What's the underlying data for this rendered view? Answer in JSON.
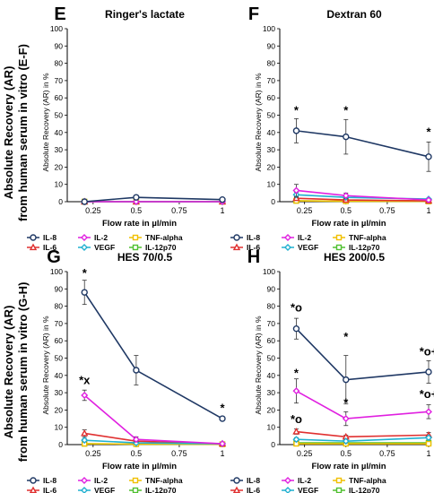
{
  "figure": {
    "ylabel_top_line1": "Absolute Recovery (AR)",
    "ylabel_top_line2": "from human serum in vitro (E-F)",
    "ylabel_bottom_line1": "Absolute Recovery (AR)",
    "ylabel_bottom_line2": "from human serum in vitro (G-H)"
  },
  "chart_data": [
    {
      "panel": "E",
      "type": "line",
      "title": "Ringer's lactate",
      "xlabel": "Flow rate in µl/min",
      "ylabel": "Absolute Recovery (AR) in %",
      "x": [
        0.2,
        0.5,
        1
      ],
      "xticks": [
        "0.25",
        "0.5",
        "0.75",
        "1"
      ],
      "ylim": [
        0,
        100
      ],
      "yticks": [
        "0",
        "10",
        "20",
        "30",
        "40",
        "50",
        "60",
        "70",
        "80",
        "90",
        "100"
      ],
      "series": [
        {
          "name": "IL-8",
          "color": "#1f3864",
          "marker": "circle",
          "values": [
            0,
            2.5,
            1.2
          ],
          "err": [
            0.3,
            0.5,
            0.4
          ]
        },
        {
          "name": "IL-2",
          "color": "#e020e0",
          "marker": "diamond",
          "values": [
            0,
            0,
            0
          ],
          "err": [
            0,
            0,
            0
          ]
        },
        {
          "name": "TNF-alpha",
          "color": "#f0c000",
          "marker": "square",
          "values": [
            0,
            0,
            0
          ],
          "err": [
            0,
            0,
            0
          ]
        },
        {
          "name": "IL-6",
          "color": "#e03030",
          "marker": "triangle",
          "values": [
            0,
            0,
            0
          ],
          "err": [
            0,
            0,
            0
          ]
        },
        {
          "name": "VEGF",
          "color": "#20b0d0",
          "marker": "diamond",
          "values": [
            0,
            0,
            0
          ],
          "err": [
            0,
            0,
            0
          ]
        },
        {
          "name": "IL-12p70",
          "color": "#50c030",
          "marker": "square",
          "values": [
            0,
            0,
            0
          ],
          "err": [
            0,
            0,
            0
          ]
        }
      ],
      "annotations": []
    },
    {
      "panel": "F",
      "type": "line",
      "title": "Dextran 60",
      "xlabel": "Flow rate in µl/min",
      "ylabel": "Absolute Recovery (AR) in %",
      "x": [
        0.2,
        0.5,
        1
      ],
      "xticks": [
        "0.25",
        "0.5",
        "0.75",
        "1"
      ],
      "ylim": [
        0,
        100
      ],
      "yticks": [
        "0",
        "10",
        "20",
        "30",
        "40",
        "50",
        "60",
        "70",
        "80",
        "90",
        "100"
      ],
      "series": [
        {
          "name": "IL-8",
          "color": "#1f3864",
          "marker": "circle",
          "values": [
            41,
            37.5,
            26
          ],
          "err": [
            7,
            10,
            8.5
          ]
        },
        {
          "name": "IL-2",
          "color": "#e020e0",
          "marker": "diamond",
          "values": [
            6.5,
            3.5,
            1
          ],
          "err": [
            3.5,
            1.5,
            0.5
          ]
        },
        {
          "name": "TNF-alpha",
          "color": "#f0c000",
          "marker": "square",
          "values": [
            0.5,
            0.3,
            0.2
          ],
          "err": [
            0,
            0,
            0
          ]
        },
        {
          "name": "IL-6",
          "color": "#e03030",
          "marker": "triangle",
          "values": [
            2,
            1,
            0.5
          ],
          "err": [
            1,
            0.5,
            0.3
          ]
        },
        {
          "name": "VEGF",
          "color": "#20b0d0",
          "marker": "diamond",
          "values": [
            4,
            2.5,
            1.5
          ],
          "err": [
            1.5,
            1,
            0.5
          ]
        },
        {
          "name": "IL-12p70",
          "color": "#50c030",
          "marker": "square",
          "values": [
            0.5,
            0.3,
            0.2
          ],
          "err": [
            0,
            0,
            0
          ]
        }
      ],
      "annotations": [
        {
          "x": 0.2,
          "y": 50.5,
          "text": "*"
        },
        {
          "x": 0.5,
          "y": 50.5,
          "text": "*"
        },
        {
          "x": 1,
          "y": 38,
          "text": "*"
        }
      ]
    },
    {
      "panel": "G",
      "type": "line",
      "title": "HES 70/0.5",
      "xlabel": "Flow rate in µl/min",
      "ylabel": "Absolute Recovery (AR) in %",
      "x": [
        0.2,
        0.5,
        1
      ],
      "xticks": [
        "0.25",
        "0.5",
        "0.75",
        "1"
      ],
      "ylim": [
        0,
        100
      ],
      "yticks": [
        "0",
        "10",
        "20",
        "30",
        "40",
        "50",
        "60",
        "70",
        "80",
        "90",
        "100"
      ],
      "series": [
        {
          "name": "IL-8",
          "color": "#1f3864",
          "marker": "circle",
          "values": [
            88,
            43,
            15
          ],
          "err": [
            7,
            8.5,
            0.5
          ]
        },
        {
          "name": "IL-2",
          "color": "#e020e0",
          "marker": "diamond",
          "values": [
            28.5,
            3,
            0.5
          ],
          "err": [
            3,
            1.5,
            0.3
          ]
        },
        {
          "name": "TNF-alpha",
          "color": "#f0c000",
          "marker": "square",
          "values": [
            0.5,
            0.3,
            0.2
          ],
          "err": [
            0,
            0,
            0
          ]
        },
        {
          "name": "IL-6",
          "color": "#e03030",
          "marker": "triangle",
          "values": [
            6.5,
            2,
            0.5
          ],
          "err": [
            2,
            1,
            0.3
          ]
        },
        {
          "name": "VEGF",
          "color": "#20b0d0",
          "marker": "diamond",
          "values": [
            2.5,
            1,
            0.5
          ],
          "err": [
            1,
            0.5,
            0.2
          ]
        },
        {
          "name": "IL-12p70",
          "color": "#50c030",
          "marker": "square",
          "values": [
            0.5,
            0.3,
            0.2
          ],
          "err": [
            0,
            0,
            0
          ]
        }
      ],
      "annotations": [
        {
          "x": 0.2,
          "y": 97,
          "text": "*"
        },
        {
          "x": 0.2,
          "y": 35,
          "text": "*x"
        },
        {
          "x": 1,
          "y": 19,
          "text": "*"
        }
      ]
    },
    {
      "panel": "H",
      "type": "line",
      "title": "HES 200/0.5",
      "xlabel": "Flow rate in µl/min",
      "ylabel": "Absolute Recovery (AR) in %",
      "x": [
        0.2,
        0.5,
        1
      ],
      "xticks": [
        "0.25",
        "0.5",
        "0.75",
        "1"
      ],
      "ylim": [
        0,
        100
      ],
      "yticks": [
        "0",
        "10",
        "20",
        "30",
        "40",
        "50",
        "60",
        "70",
        "80",
        "90",
        "100"
      ],
      "series": [
        {
          "name": "IL-8",
          "color": "#1f3864",
          "marker": "circle",
          "values": [
            67,
            37.5,
            42
          ],
          "err": [
            6,
            14,
            6.5
          ]
        },
        {
          "name": "IL-2",
          "color": "#e020e0",
          "marker": "diamond",
          "values": [
            31,
            15,
            19
          ],
          "err": [
            7,
            4,
            4
          ]
        },
        {
          "name": "TNF-alpha",
          "color": "#f0c000",
          "marker": "square",
          "values": [
            0.5,
            0.5,
            0.5
          ],
          "err": [
            0,
            0,
            0
          ]
        },
        {
          "name": "IL-6",
          "color": "#e03030",
          "marker": "triangle",
          "values": [
            7.5,
            4.5,
            5.5
          ],
          "err": [
            1.5,
            1,
            1.5
          ]
        },
        {
          "name": "VEGF",
          "color": "#20b0d0",
          "marker": "diamond",
          "values": [
            3,
            2,
            4
          ],
          "err": [
            1,
            1,
            1
          ]
        },
        {
          "name": "IL-12p70",
          "color": "#50c030",
          "marker": "square",
          "values": [
            1,
            1,
            1
          ],
          "err": [
            0,
            0,
            0
          ]
        }
      ],
      "annotations": [
        {
          "x": 0.2,
          "y": 77,
          "text": "*o"
        },
        {
          "x": 0.5,
          "y": 60,
          "text": "*"
        },
        {
          "x": 1,
          "y": 51.5,
          "text": "*o+"
        },
        {
          "x": 0.2,
          "y": 39,
          "text": "*"
        },
        {
          "x": 0.5,
          "y": 22,
          "text": "*"
        },
        {
          "x": 1,
          "y": 27,
          "text": "*o+"
        },
        {
          "x": 0.2,
          "y": 12.5,
          "text": "*o"
        }
      ]
    }
  ]
}
